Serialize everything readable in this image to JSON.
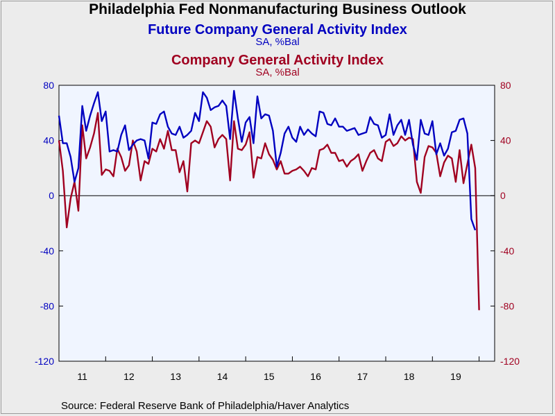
{
  "chart_data": {
    "type": "line",
    "title": "Philadelphia Fed Nonmanufacturing Business Outlook",
    "source": "Source:  Federal Reserve Bank of Philadelphia/Haver Analytics",
    "x_tick_labels": [
      "11",
      "12",
      "13",
      "14",
      "15",
      "16",
      "17",
      "18",
      "19"
    ],
    "y_left": {
      "ticks": [
        "80",
        "40",
        "0",
        "-40",
        "-80",
        "-120"
      ],
      "range": [
        -120,
        80
      ],
      "color": "#0000c0"
    },
    "y_right": {
      "ticks": [
        "80",
        "40",
        "0",
        "-40",
        "-80",
        "-120"
      ],
      "range": [
        -120,
        80
      ],
      "color": "#a00020"
    },
    "x_range": [
      2011.0,
      2020.333
    ],
    "grid": false,
    "zero_line": true,
    "series": [
      {
        "name": "Future Company General Activity Index",
        "unit": "SA, %Bal",
        "color": "#0000c0",
        "start": 2011.0,
        "step": 0.08333,
        "values": [
          58,
          38,
          38,
          28,
          10,
          20,
          65,
          47,
          58,
          67,
          75,
          54,
          61,
          32,
          33,
          32,
          44,
          51,
          33,
          37,
          40,
          41,
          40,
          27,
          53,
          52,
          59,
          61,
          50,
          45,
          44,
          50,
          42,
          44,
          47,
          60,
          54,
          75,
          71,
          62,
          64,
          65,
          69,
          65,
          41,
          76,
          56,
          39,
          53,
          57,
          38,
          72,
          56,
          59,
          58,
          47,
          21,
          31,
          45,
          50,
          42,
          39,
          50,
          44,
          48,
          45,
          43,
          61,
          60,
          52,
          51,
          56,
          50,
          50,
          47,
          48,
          49,
          44,
          45,
          46,
          57,
          52,
          51,
          42,
          44,
          59,
          44,
          51,
          55,
          44,
          55,
          37,
          26,
          55,
          45,
          44,
          54,
          30,
          38,
          29,
          34,
          46,
          47,
          55,
          56,
          45,
          -17,
          -25
        ]
      },
      {
        "name": "Company General Activity Index",
        "unit": "SA, %Bal",
        "color": "#a00020",
        "start": 2011.0,
        "step": 0.08333,
        "values": [
          40,
          18,
          -23,
          -2,
          10,
          -11,
          51,
          27,
          35,
          45,
          60,
          15,
          19,
          18,
          14,
          34,
          28,
          18,
          22,
          40,
          32,
          11,
          25,
          23,
          34,
          32,
          41,
          34,
          47,
          33,
          33,
          17,
          25,
          3,
          38,
          40,
          38,
          46,
          54,
          50,
          35,
          41,
          44,
          41,
          11,
          54,
          34,
          33,
          37,
          46,
          13,
          28,
          27,
          38,
          30,
          26,
          19,
          25,
          16,
          16,
          18,
          19,
          21,
          18,
          14,
          20,
          19,
          33,
          34,
          37,
          31,
          31,
          25,
          26,
          21,
          25,
          27,
          30,
          18,
          25,
          31,
          33,
          27,
          25,
          39,
          41,
          36,
          38,
          43,
          40,
          42,
          41,
          10,
          2,
          28,
          36,
          35,
          31,
          14,
          24,
          29,
          27,
          10,
          33,
          9,
          23,
          37,
          20,
          -83
        ]
      }
    ]
  }
}
